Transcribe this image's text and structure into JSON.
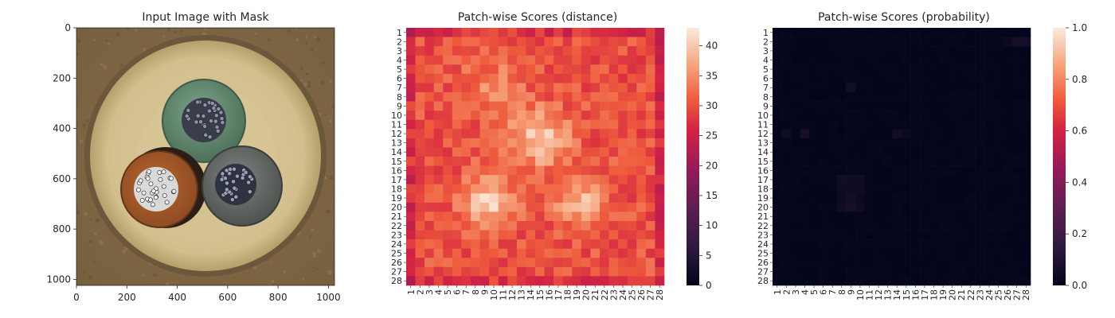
{
  "panels": [
    {
      "title": "Input Image with Mask",
      "image_description_icon": "cable-cross-section-image",
      "chart_data": {
        "type": "image",
        "title": "Input Image with Mask",
        "xlim": [
          0,
          1024
        ],
        "ylim": [
          1024,
          0
        ],
        "xticks": [
          0,
          200,
          400,
          600,
          800,
          1000
        ],
        "yticks": [
          0,
          200,
          400,
          600,
          800,
          1000
        ]
      }
    },
    {
      "title": "Patch-wise Scores (distance)",
      "chart_data": {
        "type": "heatmap",
        "title": "Patch-wise Scores (distance)",
        "rows": 28,
        "cols": 28,
        "row_labels": [
          "1",
          "2",
          "3",
          "4",
          "5",
          "6",
          "7",
          "8",
          "9",
          "10",
          "11",
          "12",
          "13",
          "14",
          "15",
          "16",
          "17",
          "18",
          "19",
          "20",
          "21",
          "22",
          "23",
          "24",
          "25",
          "26",
          "27",
          "28"
        ],
        "col_labels": [
          "1",
          "2",
          "3",
          "4",
          "5",
          "6",
          "7",
          "8",
          "9",
          "10",
          "11",
          "12",
          "13",
          "14",
          "15",
          "16",
          "17",
          "18",
          "19",
          "20",
          "21",
          "22",
          "23",
          "24",
          "25",
          "26",
          "27",
          "28"
        ],
        "colorbar_range": [
          0,
          43
        ],
        "colorbar_ticks": [
          0,
          5,
          10,
          15,
          20,
          25,
          30,
          35,
          40
        ],
        "colormap": "rocket",
        "value_summary": "values mostly 27-36, bright regions up to ~43 near rows 10-13 cols 12-16 and rows 17-21 cols 8-10 and 17-20"
      }
    },
    {
      "title": "Patch-wise Scores (probability)",
      "chart_data": {
        "type": "heatmap",
        "title": "Patch-wise Scores (probability)",
        "rows": 28,
        "cols": 28,
        "row_labels": [
          "1",
          "2",
          "3",
          "4",
          "5",
          "6",
          "7",
          "8",
          "9",
          "10",
          "11",
          "12",
          "13",
          "14",
          "15",
          "16",
          "17",
          "18",
          "19",
          "20",
          "21",
          "22",
          "23",
          "24",
          "25",
          "26",
          "27",
          "28"
        ],
        "col_labels": [
          "1",
          "2",
          "3",
          "4",
          "5",
          "6",
          "7",
          "8",
          "9",
          "10",
          "11",
          "12",
          "13",
          "14",
          "15",
          "16",
          "17",
          "18",
          "19",
          "20",
          "21",
          "22",
          "23",
          "24",
          "25",
          "26",
          "27",
          "28"
        ],
        "colorbar_range": [
          0,
          1
        ],
        "colorbar_ticks": [
          "0.0",
          "0.2",
          "0.4",
          "0.6",
          "0.8",
          "1.0"
        ],
        "colormap": "rocket",
        "value_summary": "nearly all values ~0.0, a few faint cells up to ~0.05"
      }
    }
  ]
}
